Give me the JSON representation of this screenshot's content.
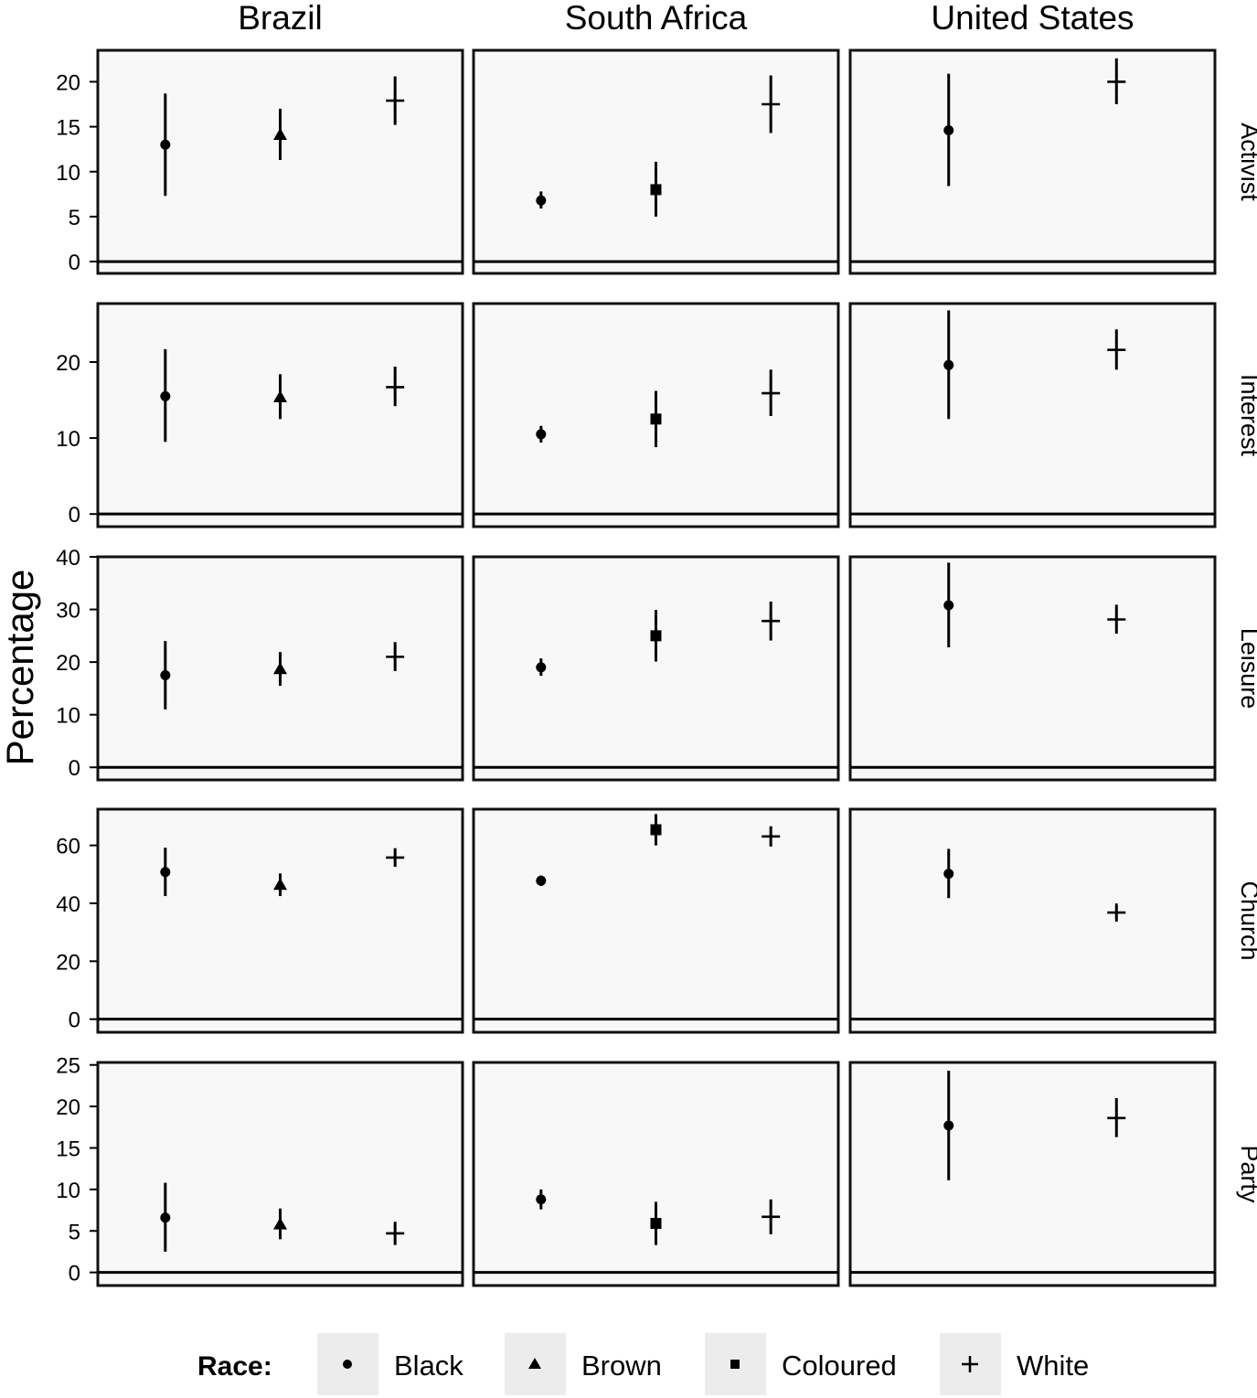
{
  "chart_data": {
    "type": "scatter",
    "ylabel": "Percentage",
    "columns": [
      "Brazil",
      "South Africa",
      "United States"
    ],
    "rows": [
      "Activist",
      "Interest",
      "Leisure",
      "Church",
      "Party"
    ],
    "legend": {
      "title": "Race:",
      "position": "bottom",
      "items": [
        {
          "label": "Black",
          "shape": "circle"
        },
        {
          "label": "Brown",
          "shape": "triangle"
        },
        {
          "label": "Coloured",
          "shape": "square"
        },
        {
          "label": "White",
          "shape": "plus"
        }
      ]
    },
    "x_slots": [
      "Black",
      "Brown",
      "Coloured",
      "White"
    ],
    "panels": [
      {
        "row": "Activist",
        "ylim": [
          -0.5,
          23.5
        ],
        "yticks": [
          0,
          5,
          10,
          15,
          20
        ],
        "points": {
          "Brazil": [
            {
              "race": "Black",
              "y": 13.0,
              "lo": 7.3,
              "hi": 18.7
            },
            {
              "race": "Brown",
              "y": 14.1,
              "lo": 11.3,
              "hi": 17.0
            },
            {
              "race": "White",
              "y": 17.9,
              "lo": 15.2,
              "hi": 20.6
            }
          ],
          "South Africa": [
            {
              "race": "Black",
              "y": 6.8,
              "lo": 5.9,
              "hi": 7.8
            },
            {
              "race": "Coloured",
              "y": 8.0,
              "lo": 5.0,
              "hi": 11.1
            },
            {
              "race": "White",
              "y": 17.5,
              "lo": 14.3,
              "hi": 20.7
            }
          ],
          "United States": [
            {
              "race": "Black",
              "y": 14.6,
              "lo": 8.4,
              "hi": 20.9
            },
            {
              "race": "White",
              "y": 20.0,
              "lo": 17.5,
              "hi": 22.6
            }
          ]
        }
      },
      {
        "row": "Interest",
        "ylim": [
          -0.7,
          27.7
        ],
        "yticks": [
          0,
          10,
          20
        ],
        "points": {
          "Brazil": [
            {
              "race": "Black",
              "y": 15.5,
              "lo": 9.5,
              "hi": 21.7
            },
            {
              "race": "Brown",
              "y": 15.4,
              "lo": 12.5,
              "hi": 18.4
            },
            {
              "race": "White",
              "y": 16.7,
              "lo": 14.2,
              "hi": 19.4
            }
          ],
          "South Africa": [
            {
              "race": "Black",
              "y": 10.5,
              "lo": 9.4,
              "hi": 11.6
            },
            {
              "race": "Coloured",
              "y": 12.5,
              "lo": 8.8,
              "hi": 16.2
            },
            {
              "race": "White",
              "y": 15.9,
              "lo": 12.9,
              "hi": 19.0
            }
          ],
          "United States": [
            {
              "race": "Black",
              "y": 19.6,
              "lo": 12.5,
              "hi": 26.8
            },
            {
              "race": "White",
              "y": 21.6,
              "lo": 19.0,
              "hi": 24.3
            }
          ]
        }
      },
      {
        "row": "Leisure",
        "ylim": [
          -1.0,
          40.0
        ],
        "yticks": [
          0,
          10,
          20,
          30,
          40
        ],
        "points": {
          "Brazil": [
            {
              "race": "Black",
              "y": 17.5,
              "lo": 11.0,
              "hi": 24.0
            },
            {
              "race": "Brown",
              "y": 18.7,
              "lo": 15.5,
              "hi": 21.9
            },
            {
              "race": "White",
              "y": 21.0,
              "lo": 18.3,
              "hi": 23.8
            }
          ],
          "South Africa": [
            {
              "race": "Black",
              "y": 19.0,
              "lo": 17.4,
              "hi": 20.7
            },
            {
              "race": "Coloured",
              "y": 25.0,
              "lo": 20.1,
              "hi": 29.9
            },
            {
              "race": "White",
              "y": 27.8,
              "lo": 24.1,
              "hi": 31.5
            }
          ],
          "United States": [
            {
              "race": "Black",
              "y": 30.8,
              "lo": 22.8,
              "hi": 38.9
            },
            {
              "race": "White",
              "y": 28.1,
              "lo": 25.4,
              "hi": 30.9
            }
          ]
        }
      },
      {
        "row": "Church",
        "ylim": [
          -2.0,
          72.5
        ],
        "yticks": [
          0,
          20,
          40,
          60
        ],
        "points": {
          "Brazil": [
            {
              "race": "Black",
              "y": 50.8,
              "lo": 42.5,
              "hi": 59.2
            },
            {
              "race": "Brown",
              "y": 46.4,
              "lo": 42.5,
              "hi": 50.3
            },
            {
              "race": "White",
              "y": 55.8,
              "lo": 52.6,
              "hi": 59.0
            }
          ],
          "South Africa": [
            {
              "race": "Black",
              "y": 47.8,
              "lo": 46.0,
              "hi": 49.6
            },
            {
              "race": "Coloured",
              "y": 65.4,
              "lo": 60.0,
              "hi": 70.8
            },
            {
              "race": "White",
              "y": 63.1,
              "lo": 59.6,
              "hi": 66.6
            }
          ],
          "United States": [
            {
              "race": "Black",
              "y": 50.2,
              "lo": 41.8,
              "hi": 58.8
            },
            {
              "race": "White",
              "y": 36.8,
              "lo": 34.0,
              "hi": 39.5
            }
          ]
        }
      },
      {
        "row": "Party",
        "ylim": [
          -0.7,
          25.3
        ],
        "yticks": [
          0,
          5,
          10,
          15,
          20,
          25
        ],
        "points": {
          "Brazil": [
            {
              "race": "Black",
              "y": 6.6,
              "lo": 2.5,
              "hi": 10.8
            },
            {
              "race": "Brown",
              "y": 5.8,
              "lo": 4.0,
              "hi": 7.7
            },
            {
              "race": "White",
              "y": 4.7,
              "lo": 3.3,
              "hi": 6.1
            }
          ],
          "South Africa": [
            {
              "race": "Black",
              "y": 8.8,
              "lo": 7.6,
              "hi": 10.0
            },
            {
              "race": "Coloured",
              "y": 5.9,
              "lo": 3.3,
              "hi": 8.5
            },
            {
              "race": "White",
              "y": 6.7,
              "lo": 4.6,
              "hi": 8.8
            }
          ],
          "United States": [
            {
              "race": "Black",
              "y": 17.7,
              "lo": 11.1,
              "hi": 24.3
            },
            {
              "race": "White",
              "y": 18.6,
              "lo": 16.3,
              "hi": 21.0
            }
          ]
        }
      }
    ]
  }
}
